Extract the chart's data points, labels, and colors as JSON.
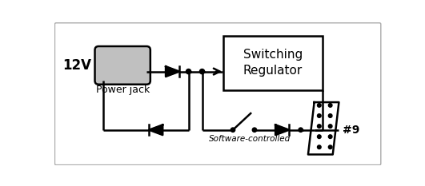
{
  "bg_color": "#ffffff",
  "lc": "#000000",
  "fig_width": 5.31,
  "fig_height": 2.33,
  "dpi": 100,
  "v12_label": "12V",
  "power_jack_label": "Power jack",
  "switching_reg_label": "Switching\nRegulator",
  "software_label": "Software-controlled",
  "pin9_label": "#9",
  "lw": 1.8
}
